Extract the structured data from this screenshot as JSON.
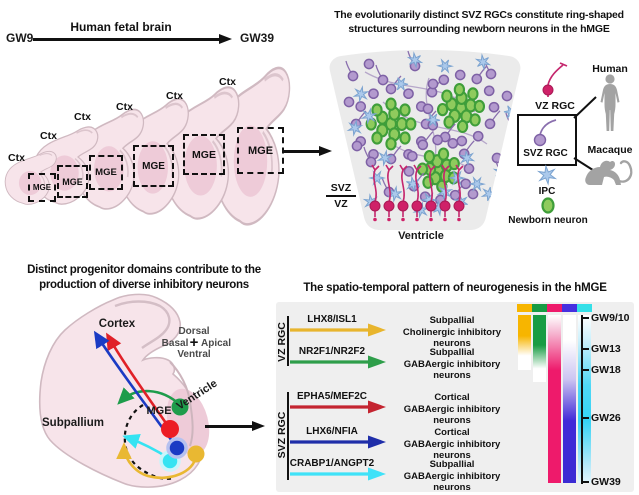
{
  "colors": {
    "brain_pink": "#f7e4ea",
    "fan_gray": "#ebebeb",
    "panel_gray": "#efefef",
    "vz_rgc_magenta": "#cf2168",
    "svz_rgc_purple": "#b39ace",
    "ipc_blue": "#abc9eb",
    "newborn_green": "#8fcb5d",
    "silhouette_gray": "#a3a3a3"
  },
  "panel_top_left": {
    "title": "Human fetal brain",
    "start_label": "GW9",
    "end_label": "GW39",
    "ctx_label": "Ctx",
    "mge_label": "MGE"
  },
  "panel_top_right": {
    "title_line1": "The evolutionarily distinct SVZ RGCs constitute ring-shaped",
    "title_line2": "structures surrounding newborn neurons in the hMGE",
    "svz_label": "SVZ",
    "vz_label": "VZ",
    "ventricle_label": "Ventricle",
    "legend": {
      "vz_rgc": "VZ RGC",
      "svz_rgc": "SVZ RGC",
      "ipc": "IPC",
      "newborn_neuron": "Newborn neuron",
      "human": "Human",
      "macaque": "Macaque"
    }
  },
  "panel_bottom_left": {
    "title_line1": "Distinct progenitor domains contribute to the",
    "title_line2": "production of diverse inhibitory neurons",
    "cortex_label": "Cortex",
    "subpallium_label": "Subpallium",
    "mge_label": "MGE",
    "ventricle_label": "Ventricle",
    "compass": {
      "dorsal": "Dorsal",
      "basal": "Basal",
      "apical": "Apical",
      "ventral": "Ventral",
      "center": "+"
    }
  },
  "panel_bottom_right": {
    "title": "The spatio-temporal pattern of neurogenesis in the hMGE",
    "group_labels": [
      "VZ RGC",
      "SVZ RGC"
    ],
    "rows": [
      {
        "gene": "LHX8/ISL1",
        "arrow_color": "#E8B52D",
        "target_line1": "Subpallial",
        "target_line2": "Cholinergic inhibitory neurons"
      },
      {
        "gene": "NR2F1/NR2F2",
        "arrow_color": "#2E9E4A",
        "target_line1": "Subpallial",
        "target_line2": "GABAergic inhibitory neurons"
      },
      {
        "gene": "EPHA5/MEF2C",
        "arrow_color": "#C42430",
        "target_line1": "Cortical",
        "target_line2": "GABAergic inhibitory neurons"
      },
      {
        "gene": "LHX6/NFIA",
        "arrow_color": "#1F2EA9",
        "target_line1": "Cortical",
        "target_line2": "GABAergic inhibitory neurons"
      },
      {
        "gene": "CRABP1/ANGPT2",
        "arrow_color": "#3FE2F8",
        "target_line1": "Subpallial",
        "target_line2": "GABAergic inhibitory neurons"
      }
    ],
    "timeline_ticks": [
      "GW9/10",
      "GW13",
      "GW18",
      "GW26",
      "GW39"
    ],
    "expression_bars": [
      {
        "gene": "LHX8/ISL1",
        "color": "#F7B500",
        "pattern": "high at GW9/10, fades out by ~GW13-18"
      },
      {
        "gene": "NR2F1/NR2F2",
        "color": "#189C43",
        "pattern": "high at GW9/10, fades out by ~GW14-18"
      },
      {
        "gene": "EPHA5/MEF2C",
        "color": "#EE1A6B",
        "pattern": "rises after GW9/10, sustained to GW39"
      },
      {
        "gene": "LHX6/NFIA",
        "color": "#3B2BD3",
        "pattern": "rises around GW18, sustained to GW39"
      },
      {
        "gene": "CRABP1/ANGPT2",
        "color": "#35D3F5",
        "pattern": "rises by GW18, peaks GW18-26, fades toward GW39"
      }
    ]
  }
}
